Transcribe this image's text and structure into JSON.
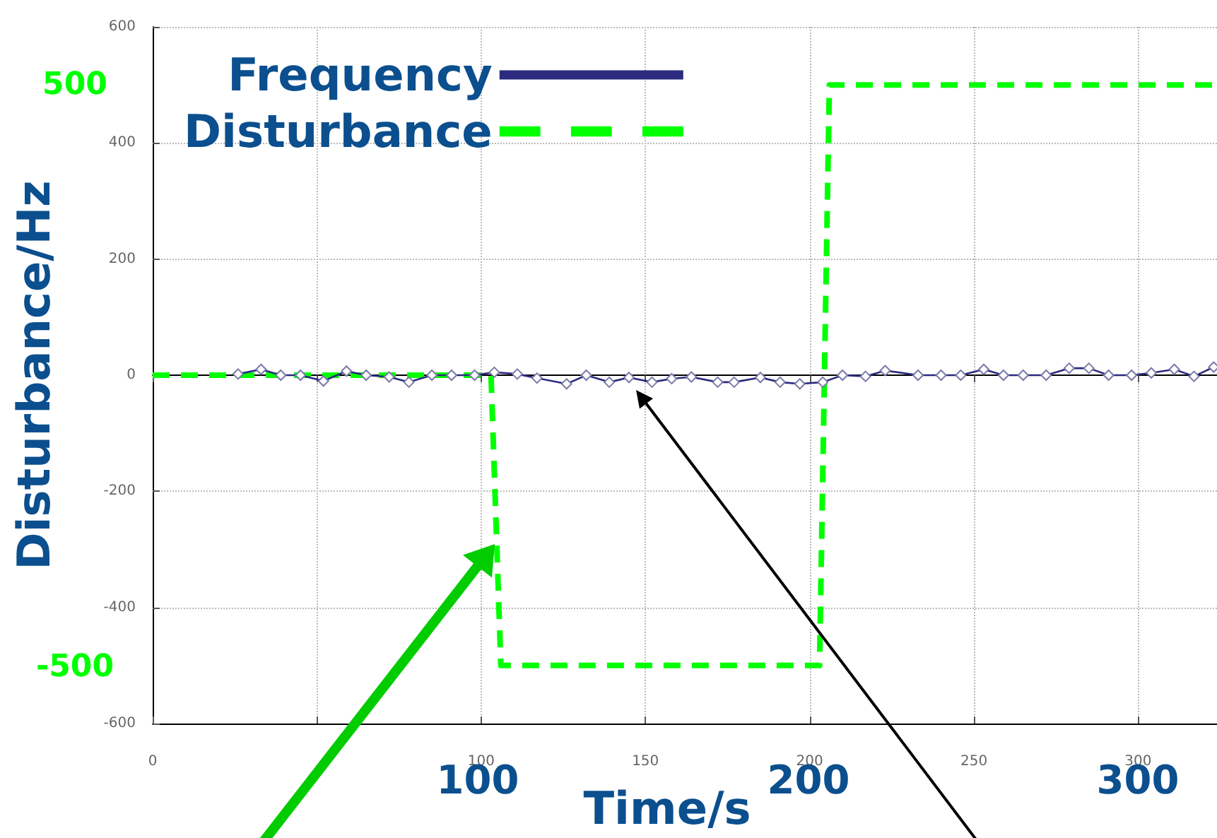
{
  "chart_data": {
    "type": "line",
    "xlabel": "Time/s",
    "ylabel": "Disturbance/Hz",
    "xlim": [
      0,
      324
    ],
    "xticks": [
      0,
      {
        "value": 50,
        "label": null
      },
      100,
      150,
      200,
      250,
      300
    ],
    "ylim": [
      -600,
      600
    ],
    "yticks": [
      -600,
      -400,
      -200,
      0,
      200,
      400,
      600
    ],
    "grid": true,
    "legend": "top left",
    "series": [
      {
        "name": "Frequency",
        "color": "#2b2b80",
        "marker": "diamond",
        "line_style": "solid",
        "x": [
          26,
          33,
          39,
          45,
          52,
          59,
          65,
          72,
          78,
          85,
          91,
          98,
          104,
          111,
          117,
          126,
          132,
          139,
          145,
          152,
          158,
          164,
          172,
          177,
          185,
          191,
          197,
          204,
          210,
          217,
          223,
          233,
          240,
          246,
          253,
          259,
          265,
          272,
          279,
          285,
          291,
          298,
          304,
          311,
          317,
          323
        ],
        "values": [
          2,
          10,
          0,
          0,
          -10,
          7,
          0,
          -3,
          -12,
          0,
          0,
          0,
          5,
          2,
          -5,
          -15,
          0,
          -12,
          -4,
          -12,
          -6,
          -3,
          -12,
          -12,
          -4,
          -12,
          -15,
          -12,
          0,
          -2,
          8,
          0,
          0,
          0,
          10,
          0,
          0,
          0,
          12,
          12,
          0,
          0,
          4,
          10,
          -2,
          14
        ]
      },
      {
        "name": "Disturbance",
        "color": "#00ff00",
        "marker": "none",
        "line_style": "dashed",
        "x": [
          0,
          103,
          106,
          203,
          206,
          324
        ],
        "values": [
          0,
          0,
          -500,
          -500,
          500,
          500
        ]
      }
    ],
    "annotations": [
      "100",
      "200",
      "300",
      "500",
      "-500"
    ]
  }
}
